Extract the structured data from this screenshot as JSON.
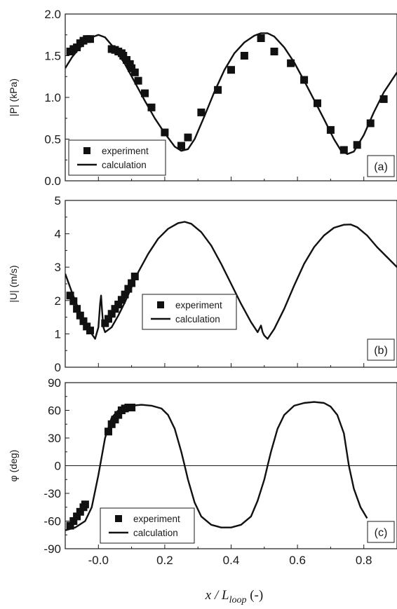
{
  "chart_data": [
    {
      "type": "scatter",
      "panel_label": "(a)",
      "ylabel": "|P| (kPa)",
      "xlim": [
        -0.1,
        0.9
      ],
      "ylim": [
        0.0,
        2.0
      ],
      "yticks": [
        "0.0",
        "0.5",
        "1.0",
        "1.5",
        "2.0"
      ],
      "legend": {
        "position": "bottom-left",
        "entries": [
          "experiment",
          "calculation"
        ]
      },
      "series": [
        {
          "name": "experiment",
          "kind": "markers",
          "x": [
            -0.085,
            -0.075,
            -0.065,
            -0.055,
            -0.045,
            -0.035,
            -0.025,
            0.04,
            0.05,
            0.06,
            0.07,
            0.075,
            0.085,
            0.095,
            0.1,
            0.11,
            0.12,
            0.14,
            0.16,
            0.2,
            0.25,
            0.27,
            0.31,
            0.36,
            0.4,
            0.44,
            0.49,
            0.53,
            0.58,
            0.62,
            0.66,
            0.7,
            0.74,
            0.78,
            0.82,
            0.86
          ],
          "y": [
            1.55,
            1.58,
            1.6,
            1.65,
            1.68,
            1.7,
            1.7,
            1.58,
            1.57,
            1.55,
            1.53,
            1.5,
            1.45,
            1.4,
            1.35,
            1.3,
            1.2,
            1.05,
            0.88,
            0.58,
            0.42,
            0.52,
            0.82,
            1.09,
            1.33,
            1.5,
            1.71,
            1.55,
            1.41,
            1.21,
            0.93,
            0.61,
            0.37,
            0.43,
            0.69,
            0.98
          ]
        },
        {
          "name": "calculation",
          "kind": "line",
          "x": [
            -0.1,
            -0.08,
            -0.06,
            -0.04,
            -0.02,
            0.0,
            0.02,
            0.05,
            0.08,
            0.11,
            0.14,
            0.17,
            0.2,
            0.23,
            0.25,
            0.27,
            0.29,
            0.32,
            0.35,
            0.38,
            0.41,
            0.44,
            0.47,
            0.49,
            0.51,
            0.53,
            0.56,
            0.59,
            0.62,
            0.65,
            0.68,
            0.71,
            0.73,
            0.75,
            0.77,
            0.8,
            0.83,
            0.86,
            0.9
          ],
          "y": [
            1.35,
            1.48,
            1.58,
            1.66,
            1.72,
            1.75,
            1.72,
            1.58,
            1.4,
            1.18,
            0.96,
            0.75,
            0.57,
            0.41,
            0.36,
            0.38,
            0.5,
            0.78,
            1.07,
            1.33,
            1.53,
            1.66,
            1.74,
            1.77,
            1.77,
            1.73,
            1.6,
            1.42,
            1.2,
            0.97,
            0.74,
            0.5,
            0.37,
            0.32,
            0.35,
            0.55,
            0.82,
            1.06,
            1.3
          ]
        }
      ]
    },
    {
      "type": "scatter",
      "panel_label": "(b)",
      "ylabel": "|U| (m/s)",
      "xlim": [
        -0.1,
        0.9
      ],
      "ylim": [
        0,
        5
      ],
      "yticks": [
        "0",
        "1",
        "2",
        "3",
        "4",
        "5"
      ],
      "legend": {
        "position": "lower-center",
        "entries": [
          "experiment",
          "calculation"
        ]
      },
      "series": [
        {
          "name": "experiment",
          "kind": "markers",
          "x": [
            -0.085,
            -0.075,
            -0.065,
            -0.055,
            -0.045,
            -0.035,
            -0.025,
            0.02,
            0.03,
            0.04,
            0.05,
            0.06,
            0.07,
            0.08,
            0.09,
            0.1,
            0.11
          ],
          "y": [
            2.15,
            1.98,
            1.75,
            1.55,
            1.38,
            1.22,
            1.1,
            1.32,
            1.45,
            1.6,
            1.75,
            1.88,
            2.02,
            2.18,
            2.35,
            2.52,
            2.72
          ]
        },
        {
          "name": "calculation",
          "kind": "line",
          "x": [
            -0.1,
            -0.08,
            -0.06,
            -0.04,
            -0.02,
            -0.01,
            0.0,
            0.005,
            0.008,
            0.011,
            0.015,
            0.02,
            0.04,
            0.06,
            0.08,
            0.1,
            0.12,
            0.15,
            0.18,
            0.21,
            0.24,
            0.26,
            0.28,
            0.31,
            0.34,
            0.37,
            0.4,
            0.43,
            0.46,
            0.48,
            0.49,
            0.495,
            0.5,
            0.51,
            0.53,
            0.56,
            0.59,
            0.62,
            0.65,
            0.68,
            0.71,
            0.74,
            0.76,
            0.78,
            0.81,
            0.84,
            0.87,
            0.9
          ],
          "y": [
            2.8,
            2.25,
            1.75,
            1.35,
            1.0,
            0.85,
            1.2,
            1.9,
            2.15,
            1.7,
            1.2,
            1.05,
            1.2,
            1.55,
            1.95,
            2.4,
            2.85,
            3.4,
            3.85,
            4.15,
            4.32,
            4.36,
            4.3,
            4.05,
            3.65,
            3.1,
            2.5,
            1.9,
            1.35,
            1.05,
            1.25,
            1.05,
            0.95,
            0.85,
            1.15,
            1.75,
            2.45,
            3.1,
            3.6,
            3.95,
            4.18,
            4.27,
            4.28,
            4.2,
            3.95,
            3.6,
            3.3,
            3.0
          ]
        }
      ]
    },
    {
      "type": "scatter",
      "panel_label": "(c)",
      "ylabel": "φ (deg)",
      "xlabel": "x / Lloop (-)",
      "xlabel_main": "x / L",
      "xlabel_sub": "loop",
      "xlabel_suffix": " (-)",
      "xlim": [
        -0.1,
        0.9
      ],
      "ylim": [
        -90,
        90
      ],
      "yticks": [
        "-90",
        "-60",
        "-30",
        "0",
        "30",
        "60",
        "90"
      ],
      "xticks": [
        "-0.0",
        "0.2",
        "0.4",
        "0.6",
        "0.8"
      ],
      "reference_line_y": 0,
      "legend": {
        "position": "bottom-left",
        "entries": [
          "experiment",
          "calculation"
        ]
      },
      "series": [
        {
          "name": "experiment",
          "kind": "markers",
          "x": [
            -0.085,
            -0.075,
            -0.065,
            -0.055,
            -0.045,
            -0.04,
            0.03,
            0.04,
            0.05,
            0.06,
            0.07,
            0.08,
            0.09,
            0.1
          ],
          "y": [
            -65,
            -60,
            -55,
            -50,
            -45,
            -42,
            37,
            45,
            50,
            55,
            60,
            62,
            63,
            63
          ]
        },
        {
          "name": "calculation",
          "kind": "line",
          "x": [
            -0.1,
            -0.07,
            -0.04,
            -0.02,
            0.0,
            0.02,
            0.04,
            0.06,
            0.08,
            0.1,
            0.13,
            0.16,
            0.19,
            0.21,
            0.23,
            0.25,
            0.26,
            0.27,
            0.29,
            0.31,
            0.34,
            0.37,
            0.4,
            0.43,
            0.46,
            0.48,
            0.5,
            0.51,
            0.52,
            0.54,
            0.56,
            0.59,
            0.62,
            0.65,
            0.68,
            0.7,
            0.72,
            0.74,
            0.755,
            0.77,
            0.79,
            0.81
          ],
          "y": [
            -70,
            -67,
            -60,
            -45,
            -10,
            30,
            52,
            60,
            64,
            65,
            66,
            65,
            62,
            55,
            40,
            15,
            0,
            -15,
            -40,
            -55,
            -64,
            -67,
            -67,
            -64,
            -55,
            -38,
            -15,
            0,
            15,
            40,
            55,
            65,
            68,
            69,
            68,
            64,
            55,
            35,
            0,
            -25,
            -45,
            -57
          ]
        }
      ]
    }
  ]
}
